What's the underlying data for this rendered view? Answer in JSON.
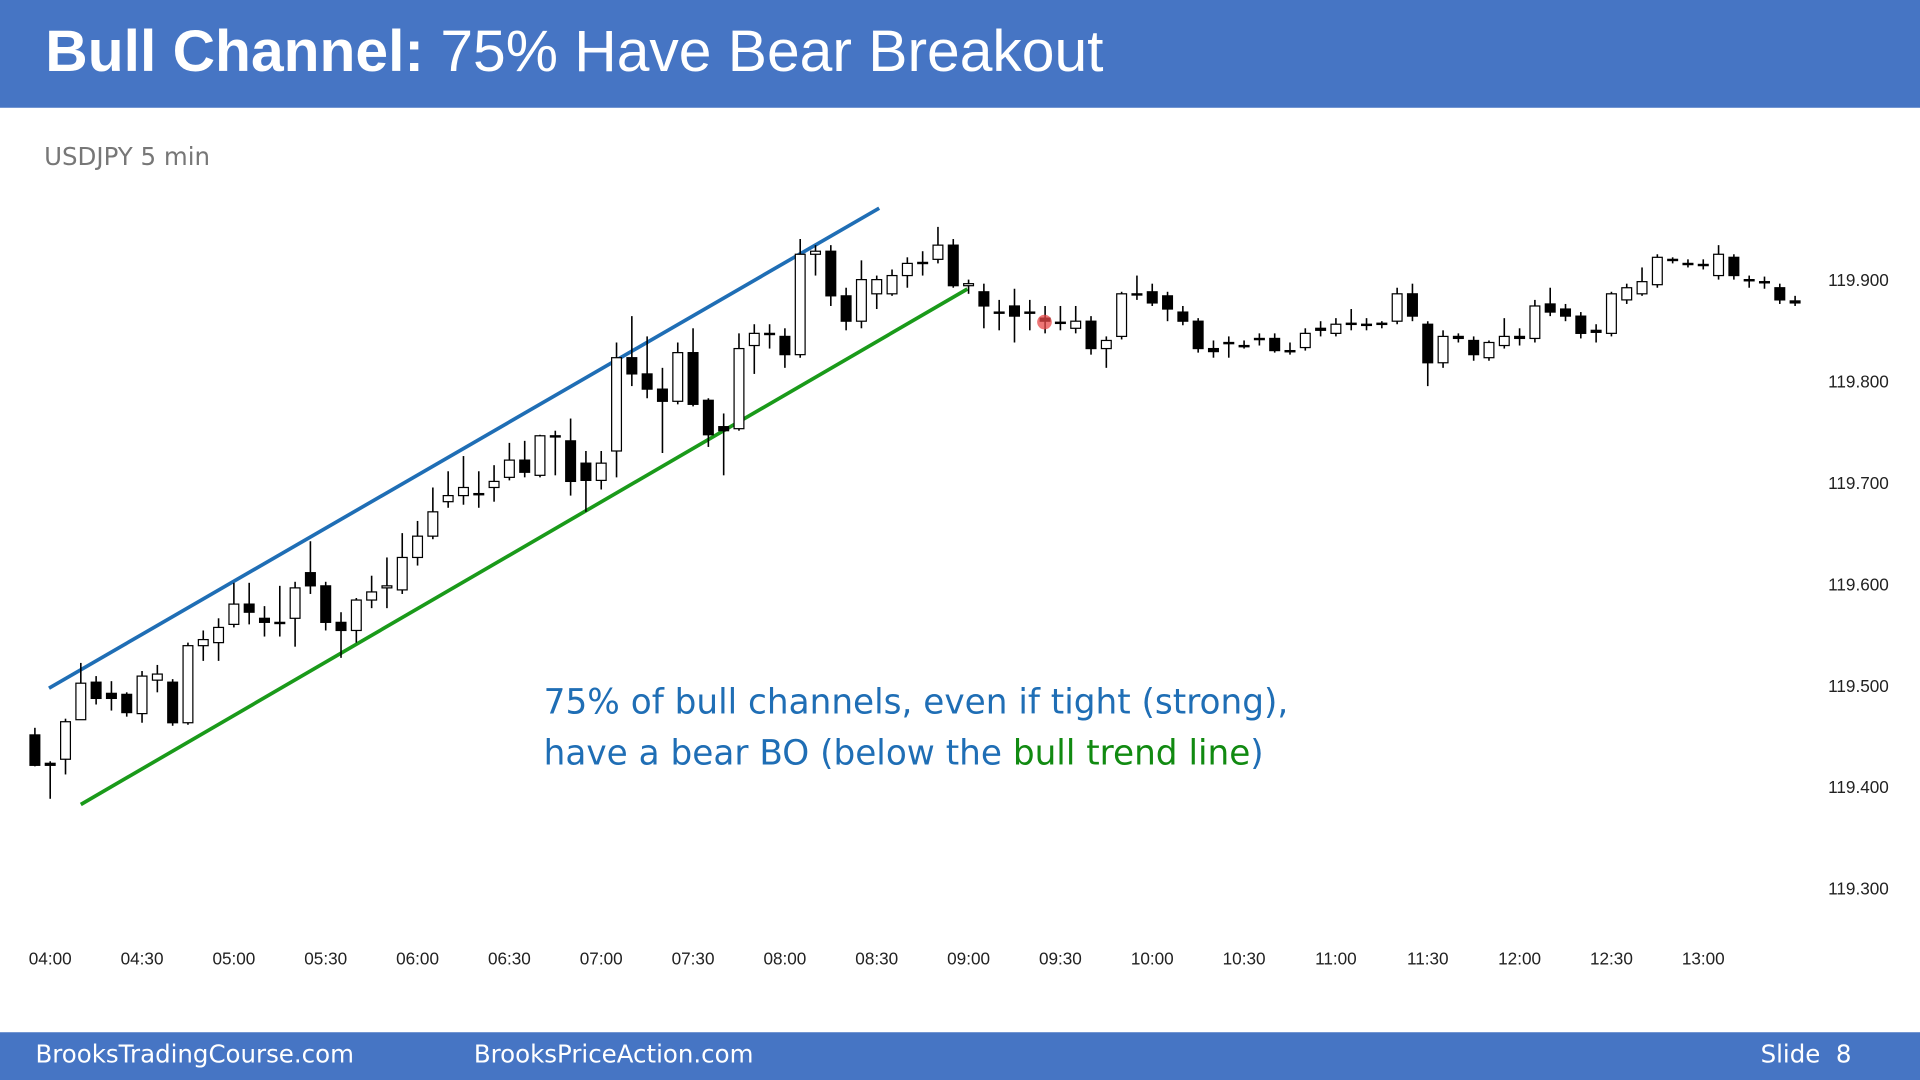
{
  "header": {
    "title_bold": "Bull Channel:",
    "title_rest": "75% Have Bear Breakout"
  },
  "chart_data": {
    "type": "candlestick",
    "subtitle": "USDJPY 5 min",
    "categories": [
      null,
      "04:00",
      null,
      null,
      null,
      null,
      null,
      "04:30",
      null,
      null,
      null,
      null,
      null,
      "05:00",
      null,
      null,
      null,
      null,
      null,
      "05:30",
      null,
      null,
      null,
      null,
      null,
      "06:00",
      null,
      null,
      null,
      null,
      null,
      "06:30",
      null,
      null,
      null,
      null,
      null,
      "07:00",
      null,
      null,
      null,
      null,
      null,
      "07:30",
      null,
      null,
      null,
      null,
      null,
      "08:00",
      null,
      null,
      null,
      null,
      null,
      "08:30",
      null,
      null,
      null,
      null,
      null,
      "09:00",
      null,
      null,
      null,
      null,
      null,
      "09:30",
      null,
      null,
      null,
      null,
      null,
      "10:00",
      null,
      null,
      null,
      null,
      null,
      "10:30",
      null,
      null,
      null,
      null,
      null,
      "11:00",
      null,
      null,
      null,
      null,
      null,
      "11:30",
      null,
      null,
      null,
      null,
      null,
      "12:00",
      null,
      null,
      null,
      null,
      null,
      "12:30",
      null,
      null,
      null,
      null,
      null,
      "13:00",
      null,
      null,
      null,
      null,
      null,
      null
    ],
    "open": [
      119.453,
      119.425,
      119.429,
      119.468,
      119.505,
      119.494,
      119.493,
      119.474,
      119.507,
      119.505,
      119.465,
      119.541,
      119.544,
      119.562,
      119.582,
      119.568,
      119.564,
      119.568,
      119.613,
      119.6,
      119.564,
      119.556,
      119.586,
      119.598,
      119.596,
      119.628,
      119.649,
      119.683,
      119.689,
      119.691,
      119.697,
      119.707,
      119.724,
      119.709,
      119.748,
      119.743,
      119.721,
      119.704,
      119.733,
      119.825,
      119.809,
      119.794,
      119.782,
      119.83,
      119.783,
      119.757,
      119.755,
      119.837,
      119.849,
      119.846,
      119.828,
      119.927,
      119.93,
      119.886,
      119.861,
      119.888,
      119.888,
      119.906,
      119.918,
      119.922,
      119.936,
      119.896,
      119.89,
      119.87,
      119.876,
      119.87,
      119.864,
      119.86,
      119.854,
      119.861,
      119.834,
      119.846,
      119.888,
      119.89,
      119.886,
      119.87,
      119.861,
      119.834,
      119.84,
      119.837,
      119.844,
      119.844,
      119.832,
      119.835,
      119.854,
      119.849,
      119.859,
      119.858,
      119.859,
      119.861,
      119.888,
      119.858,
      119.82,
      119.846,
      119.842,
      119.825,
      119.837,
      119.846,
      119.844,
      119.878,
      119.873,
      119.866,
      119.852,
      119.849,
      119.882,
      119.888,
      119.897,
      119.922,
      119.918,
      119.917,
      119.906,
      119.924,
      119.902,
      119.9,
      119.894,
      119.881
    ],
    "high": [
      119.46,
      119.427,
      119.469,
      119.524,
      119.511,
      119.506,
      119.495,
      119.516,
      119.522,
      119.508,
      119.544,
      119.556,
      119.568,
      119.603,
      119.603,
      119.58,
      119.6,
      119.604,
      119.644,
      119.604,
      119.574,
      119.588,
      119.61,
      119.628,
      119.652,
      119.664,
      119.697,
      119.713,
      119.728,
      119.713,
      119.719,
      119.741,
      119.743,
      119.749,
      119.753,
      119.765,
      119.733,
      119.733,
      119.84,
      119.866,
      119.846,
      119.815,
      119.84,
      119.854,
      119.785,
      119.77,
      119.849,
      119.858,
      119.858,
      119.854,
      119.942,
      119.936,
      119.936,
      119.894,
      119.921,
      119.906,
      119.912,
      119.924,
      119.93,
      119.954,
      119.942,
      119.902,
      119.898,
      119.882,
      119.893,
      119.882,
      119.876,
      119.876,
      119.876,
      119.866,
      119.846,
      119.89,
      119.906,
      119.898,
      119.89,
      119.876,
      119.864,
      119.842,
      119.846,
      119.842,
      119.849,
      119.849,
      119.84,
      119.854,
      119.861,
      119.864,
      119.873,
      119.864,
      119.861,
      119.894,
      119.898,
      119.861,
      119.852,
      119.849,
      119.846,
      119.842,
      119.864,
      119.854,
      119.882,
      119.894,
      119.878,
      119.87,
      119.858,
      119.89,
      119.898,
      119.914,
      119.927,
      119.924,
      119.922,
      119.922,
      119.936,
      119.927,
      119.906,
      119.905,
      119.898,
      119.886
    ],
    "low": [
      119.422,
      119.39,
      119.414,
      119.468,
      119.483,
      119.477,
      119.471,
      119.465,
      119.495,
      119.462,
      119.463,
      119.526,
      119.526,
      119.559,
      119.562,
      119.55,
      119.55,
      119.54,
      119.592,
      119.556,
      119.529,
      119.544,
      119.578,
      119.578,
      119.592,
      119.62,
      119.646,
      119.677,
      119.68,
      119.677,
      119.683,
      119.704,
      119.707,
      119.707,
      119.709,
      119.689,
      119.673,
      119.695,
      119.707,
      119.797,
      119.785,
      119.731,
      119.779,
      119.777,
      119.737,
      119.709,
      119.753,
      119.809,
      119.834,
      119.815,
      119.825,
      119.906,
      119.876,
      119.852,
      119.854,
      119.873,
      119.886,
      119.894,
      119.906,
      119.918,
      119.894,
      119.888,
      119.854,
      119.852,
      119.84,
      119.852,
      119.849,
      119.852,
      119.849,
      119.828,
      119.815,
      119.843,
      119.882,
      119.876,
      119.861,
      119.857,
      119.83,
      119.825,
      119.825,
      119.834,
      119.837,
      119.83,
      119.828,
      119.832,
      119.846,
      119.846,
      119.852,
      119.852,
      119.854,
      119.858,
      119.861,
      119.797,
      119.815,
      119.84,
      119.822,
      119.822,
      119.834,
      119.837,
      119.84,
      119.866,
      119.861,
      119.844,
      119.84,
      119.846,
      119.878,
      119.886,
      119.894,
      119.918,
      119.914,
      119.912,
      119.902,
      119.902,
      119.894,
      119.893,
      119.878,
      119.876
    ],
    "close": [
      119.423,
      119.423,
      119.466,
      119.504,
      119.489,
      119.489,
      119.475,
      119.511,
      119.513,
      119.465,
      119.541,
      119.547,
      119.559,
      119.582,
      119.574,
      119.564,
      119.563,
      119.598,
      119.6,
      119.564,
      119.556,
      119.586,
      119.594,
      119.6,
      119.628,
      119.649,
      119.673,
      119.689,
      119.697,
      119.69,
      119.703,
      119.724,
      119.712,
      119.748,
      119.747,
      119.703,
      119.704,
      119.721,
      119.825,
      119.809,
      119.794,
      119.782,
      119.83,
      119.779,
      119.749,
      119.753,
      119.834,
      119.849,
      119.848,
      119.828,
      119.927,
      119.93,
      119.886,
      119.861,
      119.902,
      119.902,
      119.906,
      119.918,
      119.919,
      119.936,
      119.896,
      119.898,
      119.876,
      119.869,
      119.866,
      119.869,
      119.861,
      119.859,
      119.861,
      119.834,
      119.842,
      119.888,
      119.887,
      119.879,
      119.873,
      119.861,
      119.834,
      119.831,
      119.839,
      119.837,
      119.843,
      119.832,
      119.831,
      119.849,
      119.852,
      119.858,
      119.858,
      119.857,
      119.859,
      119.888,
      119.866,
      119.82,
      119.846,
      119.844,
      119.828,
      119.84,
      119.846,
      119.844,
      119.876,
      119.87,
      119.866,
      119.849,
      119.85,
      119.888,
      119.894,
      119.9,
      119.924,
      119.921,
      119.917,
      119.916,
      119.927,
      119.906,
      119.901,
      119.899,
      119.882,
      119.879
    ],
    "up_color": "#ffffff",
    "down_color": "#000000",
    "ylim": [
      119.26,
      120.0
    ],
    "yticks": [
      {
        "value": 119.3,
        "label": "119.300"
      },
      {
        "value": 119.4,
        "label": "119.400"
      },
      {
        "value": 119.5,
        "label": "119.500"
      },
      {
        "value": 119.6,
        "label": "119.600"
      },
      {
        "value": 119.7,
        "label": "119.700"
      },
      {
        "value": 119.8,
        "label": "119.800"
      },
      {
        "value": 119.9,
        "label": "119.900"
      }
    ],
    "grid": false
  },
  "annotation": {
    "line1": "75% of bull channels, even if tight (strong),",
    "line2_start": "have a bear BO (below the ",
    "line2_highlight": "bull trend line",
    "line2_end": ")"
  },
  "footer": {
    "left": "BrooksTradingCourse.com",
    "center": "BrooksPriceAction.com",
    "right": "Slide  8"
  }
}
